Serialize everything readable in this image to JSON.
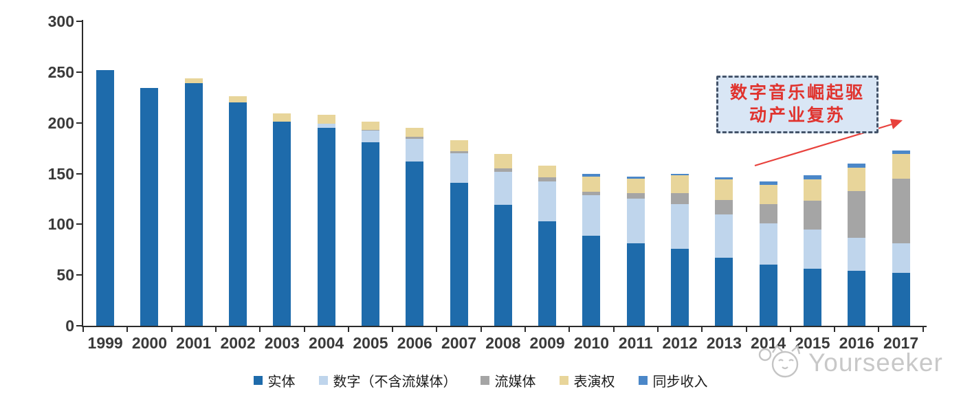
{
  "annotation": {
    "line1": "数字音乐崛起驱",
    "line2": "动产业复苏"
  },
  "watermark": {
    "brand": "Yourseeker"
  },
  "chart_data": {
    "type": "bar",
    "stacked": true,
    "title": "",
    "xlabel": "",
    "ylabel": "",
    "ylim": [
      0,
      300
    ],
    "yticks": [
      0,
      50,
      100,
      150,
      200,
      250,
      300
    ],
    "grid": false,
    "legend_position": "bottom",
    "categories": [
      "1999",
      "2000",
      "2001",
      "2002",
      "2003",
      "2004",
      "2005",
      "2006",
      "2007",
      "2008",
      "2009",
      "2010",
      "2011",
      "2012",
      "2013",
      "2014",
      "2015",
      "2016",
      "2017"
    ],
    "series": [
      {
        "key": "physical",
        "name": "实体",
        "color": "#1E6BAB",
        "values": [
          252,
          234,
          239,
          220,
          201,
          195,
          181,
          162,
          141,
          119,
          103,
          89,
          81,
          76,
          67,
          60,
          56,
          54,
          52
        ]
      },
      {
        "key": "digital-excl-streaming",
        "name": "数字（不含流媒体）",
        "color": "#BFD5EC",
        "values": [
          0,
          0,
          0,
          0,
          0,
          4,
          11,
          22,
          29,
          33,
          39,
          40,
          44,
          44,
          43,
          41,
          39,
          33,
          29
        ]
      },
      {
        "key": "streaming",
        "name": "流媒体",
        "color": "#A5A5A5",
        "values": [
          0,
          0,
          0,
          0,
          0,
          0,
          1,
          2,
          2,
          3,
          4,
          3,
          6,
          11,
          14,
          19,
          28,
          46,
          64
        ]
      },
      {
        "key": "performance-rights",
        "name": "表演权",
        "color": "#E8D59A",
        "values": [
          0,
          0,
          5,
          6,
          8,
          9,
          8,
          9,
          11,
          14,
          12,
          15,
          14,
          17,
          20,
          19,
          21,
          23,
          24
        ]
      },
      {
        "key": "sync",
        "name": "同步收入",
        "color": "#4B87C8",
        "values": [
          0,
          0,
          0,
          0,
          0,
          0,
          0,
          0,
          0,
          0,
          0,
          3,
          2,
          2,
          2,
          3,
          4,
          4,
          4
        ]
      }
    ]
  }
}
